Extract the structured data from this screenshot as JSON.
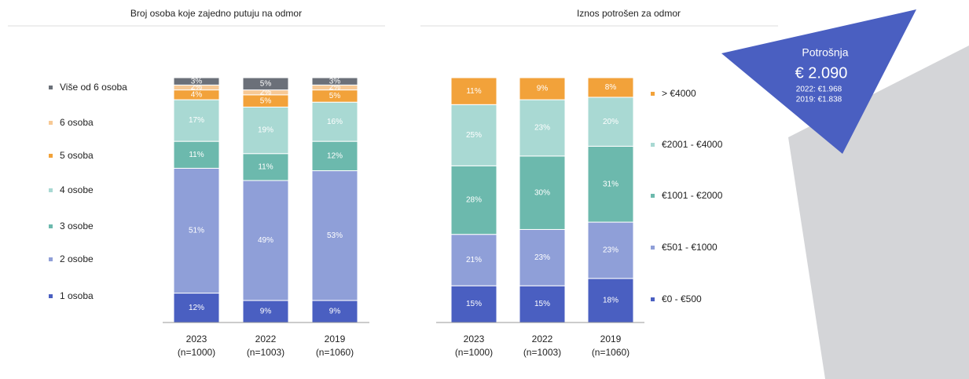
{
  "chart_data": [
    {
      "type": "stacked_bar",
      "title": "Broj osoba koje zajedno putuju na odmor",
      "categories": [
        "2023",
        "2022",
        "2019"
      ],
      "sample_sizes": [
        "(n=1000)",
        "(n=1003)",
        "(n=1060)"
      ],
      "ylim": [
        0,
        100
      ],
      "legend": "left",
      "series": [
        {
          "name": "1 osoba",
          "color": "#4a5fc1",
          "values": [
            12,
            9,
            9
          ],
          "value_labels": [
            "12%",
            "9%",
            "9%"
          ]
        },
        {
          "name": "2 osobe",
          "color": "#8f9fd8",
          "values": [
            51,
            49,
            53
          ],
          "value_labels": [
            "51%",
            "49%",
            "53%"
          ]
        },
        {
          "name": "3 osobe",
          "color": "#6cb9ad",
          "values": [
            11,
            11,
            12
          ],
          "value_labels": [
            "11%",
            "11%",
            "12%"
          ]
        },
        {
          "name": "4 osobe",
          "color": "#a9d9d3",
          "values": [
            17,
            19,
            16
          ],
          "value_labels": [
            "17%",
            "19%",
            "16%"
          ]
        },
        {
          "name": "5 osoba",
          "color": "#f2a23a",
          "values": [
            4,
            5,
            5
          ],
          "value_labels": [
            "4%",
            "5%",
            "5%"
          ]
        },
        {
          "name": "6 osoba",
          "color": "#f7c995",
          "values": [
            2,
            2,
            2
          ],
          "value_labels": [
            "2%",
            "2%",
            "2%"
          ]
        },
        {
          "name": "Više od 6 osoba",
          "color": "#6b7079",
          "values": [
            3,
            5,
            3
          ],
          "value_labels": [
            "3%",
            "5%",
            "3%"
          ]
        }
      ]
    },
    {
      "type": "stacked_bar",
      "title": "Iznos potrošen za odmor",
      "categories": [
        "2023",
        "2022",
        "2019"
      ],
      "sample_sizes": [
        "(n=1000)",
        "(n=1003)",
        "(n=1060)"
      ],
      "ylim": [
        0,
        100
      ],
      "legend": "right",
      "series": [
        {
          "name": "€0 - €500",
          "color": "#4a5fc1",
          "values": [
            15,
            15,
            18
          ],
          "value_labels": [
            "15%",
            "15%",
            "18%"
          ]
        },
        {
          "name": "€501 - €1000",
          "color": "#8f9fd8",
          "values": [
            21,
            23,
            23
          ],
          "value_labels": [
            "21%",
            "23%",
            "23%"
          ]
        },
        {
          "name": "€1001 - €2000",
          "color": "#6cb9ad",
          "values": [
            28,
            30,
            31
          ],
          "value_labels": [
            "28%",
            "30%",
            "31%"
          ]
        },
        {
          "name": "€2001 - €4000",
          "color": "#a9d9d3",
          "values": [
            25,
            23,
            20
          ],
          "value_labels": [
            "25%",
            "23%",
            "20%"
          ]
        },
        {
          "name": "> €4000",
          "color": "#f2a23a",
          "values": [
            11,
            9,
            8
          ],
          "value_labels": [
            "11%",
            "9%",
            "8%"
          ]
        }
      ]
    }
  ],
  "callout": {
    "title": "Potrošnja",
    "value": "€ 2.090",
    "lines": [
      "2022: €1.968",
      "2019: €1.838"
    ]
  }
}
